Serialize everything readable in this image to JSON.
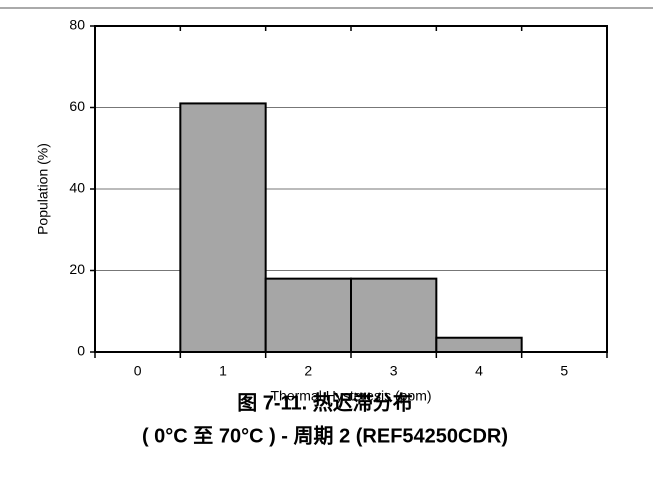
{
  "chart_data": {
    "type": "bar",
    "title": "图 7-11. 热迟滞分布",
    "subtitle": "( 0°C 至 70°C ) - 周期 2 (REF54250CDR)",
    "x_label": "Thermal Hysteresis (ppm)",
    "y_label": "Population (%)",
    "categories": [
      "0",
      "1",
      "2",
      "3",
      "4",
      "5"
    ],
    "values": [
      0,
      61,
      18,
      18,
      3.5,
      0
    ],
    "color": "#a6a6a6",
    "ylim": [
      0,
      80
    ],
    "yticks": [
      0,
      20,
      40,
      60,
      80
    ],
    "grid": true
  }
}
